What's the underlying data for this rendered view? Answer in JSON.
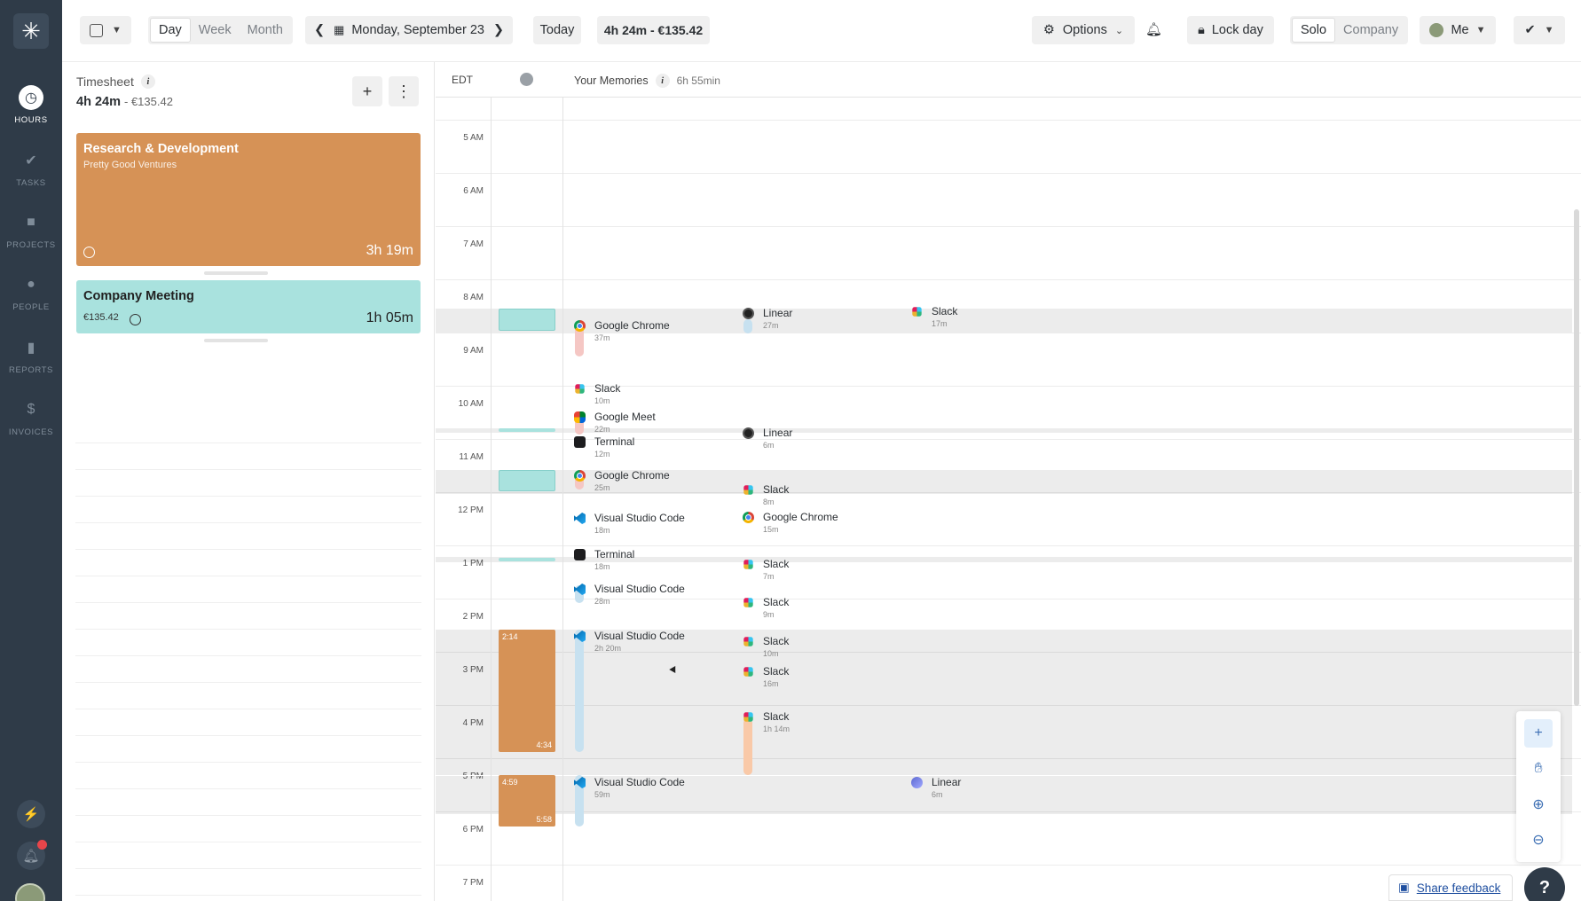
{
  "nav": {
    "items": [
      {
        "label": "HOURS",
        "icon": "clock-icon"
      },
      {
        "label": "TASKS",
        "icon": "clipboard-check-icon"
      },
      {
        "label": "PROJECTS",
        "icon": "briefcase-icon"
      },
      {
        "label": "PEOPLE",
        "icon": "person-icon"
      },
      {
        "label": "REPORTS",
        "icon": "bar-chart-icon"
      },
      {
        "label": "INVOICES",
        "icon": "dollar-icon"
      }
    ]
  },
  "toolbar": {
    "views": [
      "Day",
      "Week",
      "Month"
    ],
    "active_view": "Day",
    "date": "Monday, September 23",
    "today": "Today",
    "total": "4h 24m - €135.42",
    "options": "Options",
    "lock_day": "Lock day",
    "modes": [
      "Solo",
      "Company"
    ],
    "active_mode": "Solo",
    "user": "Me"
  },
  "timesheet": {
    "title": "Timesheet",
    "total_time": "4h 24m",
    "total_amount": "- €135.42",
    "cards": [
      {
        "title": "Research & Development",
        "subtitle": "Pretty Good Ventures",
        "duration": "3h 19m",
        "color": "#d69256"
      },
      {
        "title": "Company Meeting",
        "amount": "€135.42",
        "duration": "1h 05m",
        "color": "#a9e2de"
      }
    ]
  },
  "calendar": {
    "timezone": "EDT",
    "memories_label": "Your Memories",
    "memories_duration": "6h 55min",
    "hours": [
      "5 AM",
      "6 AM",
      "7 AM",
      "8 AM",
      "9 AM",
      "10 AM",
      "11 AM",
      "12 PM",
      "1 PM",
      "2 PM",
      "3 PM",
      "4 PM",
      "5 PM",
      "6 PM",
      "7 PM"
    ],
    "blocks": [
      {
        "start": "2:14",
        "end": "4:34"
      },
      {
        "start": "4:59",
        "end": "5:58"
      }
    ],
    "entries": [
      {
        "name": "Google Chrome",
        "dur": "37m",
        "icon": "chrome"
      },
      {
        "name": "Linear",
        "dur": "27m",
        "icon": "linear"
      },
      {
        "name": "Slack",
        "dur": "17m",
        "icon": "slack"
      },
      {
        "name": "Slack",
        "dur": "10m",
        "icon": "slack"
      },
      {
        "name": "Google Meet",
        "dur": "22m",
        "icon": "meet"
      },
      {
        "name": "Terminal",
        "dur": "12m",
        "icon": "terminal"
      },
      {
        "name": "Linear",
        "dur": "6m",
        "icon": "linear"
      },
      {
        "name": "Google Chrome",
        "dur": "25m",
        "icon": "chrome"
      },
      {
        "name": "Slack",
        "dur": "8m",
        "icon": "slack"
      },
      {
        "name": "Visual Studio Code",
        "dur": "18m",
        "icon": "vscode"
      },
      {
        "name": "Google Chrome",
        "dur": "15m",
        "icon": "chrome"
      },
      {
        "name": "Terminal",
        "dur": "18m",
        "icon": "terminal"
      },
      {
        "name": "Slack",
        "dur": "7m",
        "icon": "slack"
      },
      {
        "name": "Visual Studio Code",
        "dur": "28m",
        "icon": "vscode"
      },
      {
        "name": "Slack",
        "dur": "9m",
        "icon": "slack"
      },
      {
        "name": "Visual Studio Code",
        "dur": "2h 20m",
        "icon": "vscode"
      },
      {
        "name": "Slack",
        "dur": "10m",
        "icon": "slack"
      },
      {
        "name": "Slack",
        "dur": "16m",
        "icon": "slack"
      },
      {
        "name": "Slack",
        "dur": "1h 14m",
        "icon": "slack"
      },
      {
        "name": "Visual Studio Code",
        "dur": "59m",
        "icon": "vscode"
      },
      {
        "name": "Linear",
        "dur": "6m",
        "icon": "linear"
      }
    ]
  },
  "footer": {
    "feedback": "Share feedback",
    "help": "?"
  }
}
